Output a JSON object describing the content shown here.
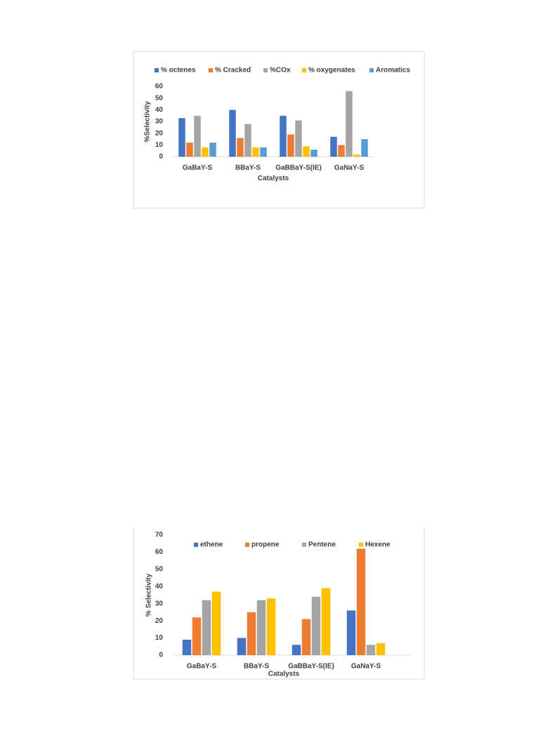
{
  "chart_data": [
    {
      "type": "bar",
      "title": null,
      "y_label": "%Selectivity",
      "x_label": "Catalysts",
      "categories": [
        "GaBaY-S",
        "BBaY-S",
        "GaBBaY-S(IE)",
        "GaNaY-S"
      ],
      "series": [
        {
          "name": "% octenes",
          "color": "#4472c4",
          "values": [
            33,
            40,
            35,
            17
          ]
        },
        {
          "name": "% Cracked",
          "color": "#ed7d31",
          "values": [
            12,
            16,
            19,
            10
          ]
        },
        {
          "name": "%COx",
          "color": "#a5a5a5",
          "values": [
            35,
            28,
            31,
            56
          ]
        },
        {
          "name": "% oxygenates",
          "color": "#ffc000",
          "values": [
            8,
            8,
            9,
            2
          ]
        },
        {
          "name": "Aromatics",
          "color": "#5b9bd5",
          "values": [
            12,
            8,
            6,
            15
          ]
        }
      ],
      "ylim": [
        0,
        60
      ],
      "yticks": [
        0,
        10,
        20,
        30,
        40,
        50,
        60
      ],
      "grid": false,
      "legend": "top"
    },
    {
      "type": "bar",
      "y_label": "% Selectivity",
      "x_label": "Catalysts",
      "categories": [
        "GaBaY-S",
        "BBaY-S",
        "GaBBaY-S(IE)",
        "GaNaY-S"
      ],
      "series": [
        {
          "name": "ethene",
          "color": "#4472c4",
          "values": [
            9,
            10,
            6,
            26
          ]
        },
        {
          "name": "propene",
          "color": "#ed7d31",
          "values": [
            22,
            25,
            21,
            62
          ]
        },
        {
          "name": "Pentene",
          "color": "#a5a5a5",
          "values": [
            32,
            32,
            34,
            6
          ]
        },
        {
          "name": "Hexene",
          "color": "#ffc000",
          "values": [
            37,
            33,
            39,
            7
          ]
        }
      ],
      "ylim": [
        0,
        70
      ],
      "yticks": [
        0,
        10,
        20,
        30,
        40,
        50,
        60,
        70
      ],
      "grid": false,
      "legend": "top"
    }
  ]
}
